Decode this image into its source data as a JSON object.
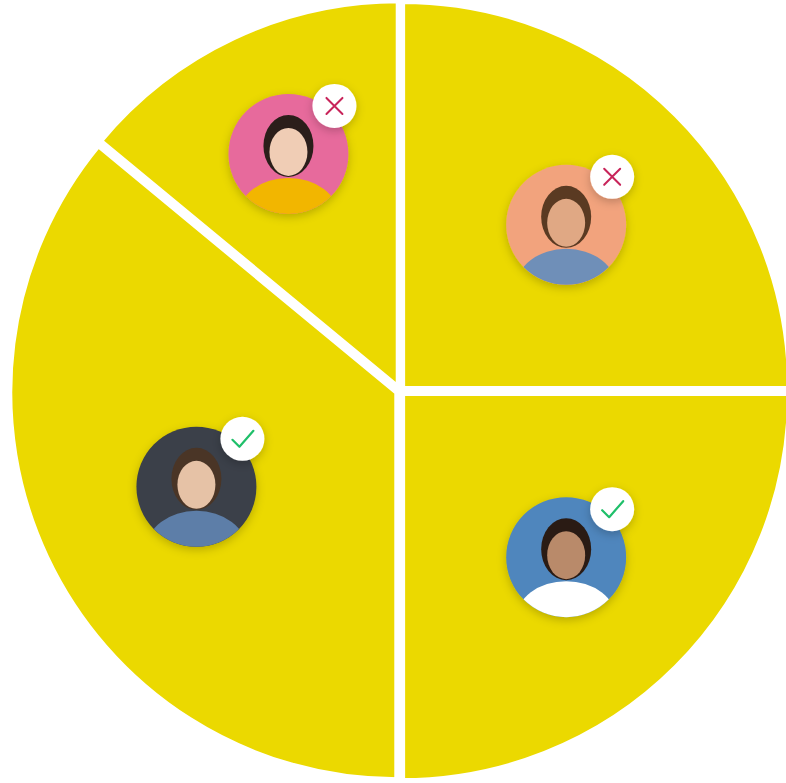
{
  "chart_data": {
    "type": "pie",
    "values": [
      25,
      25,
      36,
      14
    ],
    "color": "#ebd900"
  }
}
